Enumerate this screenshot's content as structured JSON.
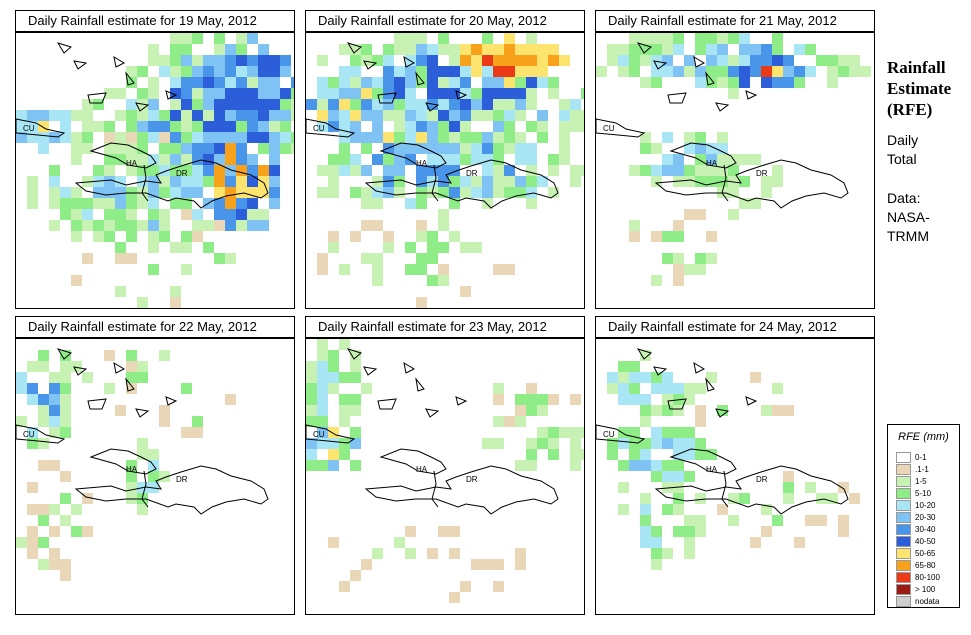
{
  "side": {
    "title_lines": [
      "Rainfall",
      "Estimate",
      "(RFE)"
    ],
    "period_lines": [
      "Daily",
      "Total"
    ],
    "source_lines": [
      "Data:",
      "NASA-",
      "TRMM"
    ]
  },
  "legend": {
    "title": "RFE (mm)",
    "items": [
      {
        "label": "0-1",
        "color": "#ffffff"
      },
      {
        "label": ".1-1",
        "color": "#e9d7b7"
      },
      {
        "label": "1-5",
        "color": "#c8f2b3"
      },
      {
        "label": "5-10",
        "color": "#8eed87"
      },
      {
        "label": "10-20",
        "color": "#a9e6f5"
      },
      {
        "label": "20-30",
        "color": "#7fc3f5"
      },
      {
        "label": "30-40",
        "color": "#4895ea"
      },
      {
        "label": "40-50",
        "color": "#2b5ed8"
      },
      {
        "label": "50-65",
        "color": "#fde46f"
      },
      {
        "label": "65-80",
        "color": "#f8a21c"
      },
      {
        "label": "80-100",
        "color": "#ea3a16"
      },
      {
        "label": "> 100",
        "color": "#9b1a12"
      },
      {
        "label": "nodata",
        "color": "#cfcfcf"
      }
    ]
  },
  "countries": {
    "cuba": "CU",
    "haiti": "HA",
    "dominican_republic": "DR"
  },
  "panels": [
    {
      "title": "Daily Rainfall estimate for  19 May, 2012",
      "rain_pattern": "widespread-east"
    },
    {
      "title": "Daily Rainfall estimate for  20 May, 2012",
      "rain_pattern": "very-wet-north"
    },
    {
      "title": "Daily Rainfall estimate for  21 May, 2012",
      "rain_pattern": "moderate-north"
    },
    {
      "title": "Daily Rainfall estimate for  22 May, 2012",
      "rain_pattern": "light-west"
    },
    {
      "title": "Daily Rainfall estimate for  23 May, 2012",
      "rain_pattern": "light-scattered"
    },
    {
      "title": "Daily Rainfall estimate for  24 May, 2012",
      "rain_pattern": "light-west-bands"
    }
  ]
}
